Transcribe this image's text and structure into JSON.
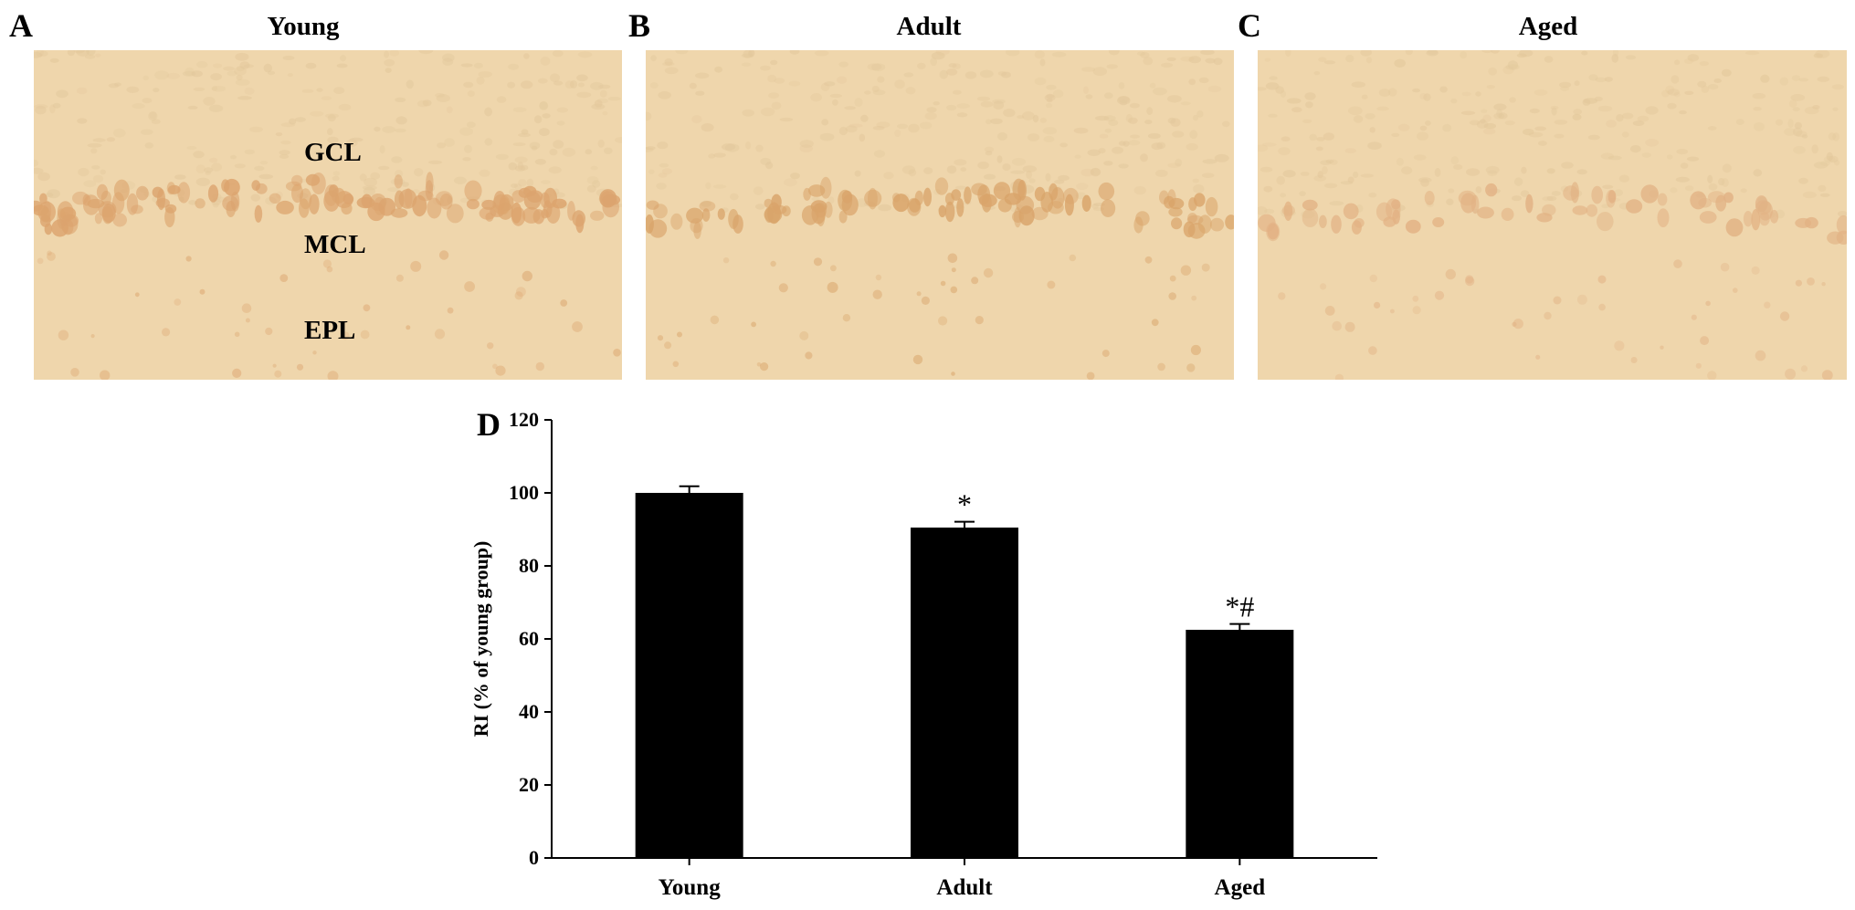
{
  "panels": [
    {
      "letter": "A",
      "title": "Young",
      "layers": [
        "GCL",
        "MCL",
        "EPL"
      ]
    },
    {
      "letter": "B",
      "title": "Adult",
      "layers": []
    },
    {
      "letter": "C",
      "title": "Aged",
      "layers": []
    }
  ],
  "colors": {
    "tissue_background": "#efd6ac",
    "tissue_cells": "#dca46e",
    "bar_fill": "#000000"
  },
  "chart_data": {
    "type": "bar",
    "panel_letter": "D",
    "categories": [
      "Young",
      "Adult",
      "Aged"
    ],
    "values": [
      100,
      90.5,
      62.5
    ],
    "errors": [
      1.8,
      1.6,
      1.6
    ],
    "annotations": [
      "",
      "*",
      "*#"
    ],
    "ylabel": "RI (% of young group)",
    "xlabel": "",
    "title": "",
    "ylim": [
      0,
      120
    ],
    "yticks": [
      0,
      20,
      40,
      60,
      80,
      100,
      120
    ],
    "grid": false,
    "legend": "none"
  }
}
